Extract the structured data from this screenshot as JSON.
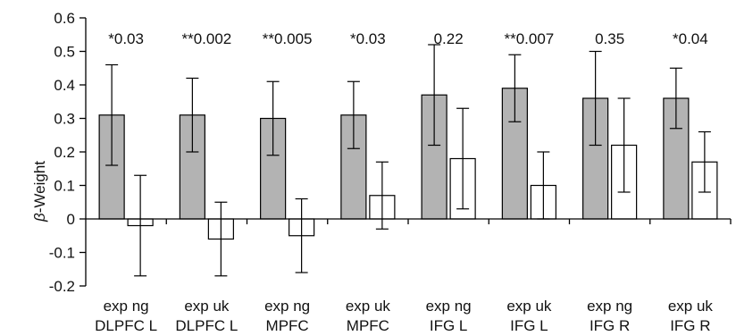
{
  "chart_data": {
    "type": "bar",
    "ylabel": "β-Weight",
    "ylabel_prefix": "β",
    "ylabel_suffix": "-Weight",
    "ylim": [
      -0.2,
      0.6
    ],
    "yticks": [
      "0.6",
      "0.5",
      "0.4",
      "0.3",
      "0.2",
      "0.1",
      "0",
      "-0.1",
      "-0.2"
    ],
    "ytick_values": [
      0.6,
      0.5,
      0.4,
      0.3,
      0.2,
      0.1,
      0,
      -0.1,
      -0.2
    ],
    "grid": false,
    "legend": "none",
    "colors": {
      "filled": "#b3b3b3",
      "open": "#ffffff",
      "stroke": "#000000"
    },
    "categories": [
      {
        "line1": "exp ng",
        "line2": "DLPFC L"
      },
      {
        "line1": "exp uk",
        "line2": "DLPFC L"
      },
      {
        "line1": "exp ng",
        "line2": "MPFC"
      },
      {
        "line1": "exp uk",
        "line2": "MPFC"
      },
      {
        "line1": "exp ng",
        "line2": "IFG L"
      },
      {
        "line1": "exp uk",
        "line2": "IFG L"
      },
      {
        "line1": "exp ng",
        "line2": "IFG R"
      },
      {
        "line1": "exp uk",
        "line2": "IFG R"
      }
    ],
    "pvalues": [
      "*0.03",
      "**0.002",
      "**0.005",
      "*0.03",
      "0.22",
      "**0.007",
      "0.35",
      "*0.04"
    ],
    "series": [
      {
        "fill": "grey",
        "values": [
          0.31,
          0.31,
          0.3,
          0.31,
          0.37,
          0.39,
          0.36,
          0.36
        ],
        "err_low": [
          0.16,
          0.2,
          0.19,
          0.21,
          0.22,
          0.29,
          0.22,
          0.27
        ],
        "err_high": [
          0.46,
          0.42,
          0.41,
          0.41,
          0.52,
          0.49,
          0.5,
          0.45
        ]
      },
      {
        "fill": "white",
        "values": [
          -0.02,
          -0.06,
          -0.05,
          0.07,
          0.18,
          0.1,
          0.22,
          0.17
        ],
        "err_low": [
          -0.17,
          -0.17,
          -0.16,
          -0.03,
          0.03,
          0.0,
          0.08,
          0.08
        ],
        "err_high": [
          0.13,
          0.05,
          0.06,
          0.17,
          0.33,
          0.2,
          0.36,
          0.26
        ]
      }
    ]
  }
}
